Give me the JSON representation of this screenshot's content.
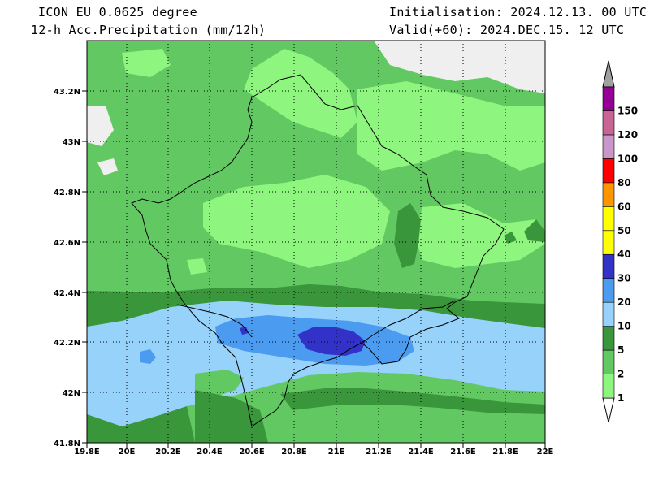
{
  "header": {
    "model": "ICON EU 0.0625 degree",
    "field": "12-h Acc.Precipitation (mm/12h)",
    "init": "Initialisation: 2024.12.13. 00 UTC",
    "valid": "Valid(+60): 2024.DEC.15. 12 UTC"
  },
  "axes": {
    "x_ticks": [
      "19.8E",
      "20E",
      "20.2E",
      "20.4E",
      "20.6E",
      "20.8E",
      "21E",
      "21.2E",
      "21.4E",
      "21.6E",
      "21.8E",
      "22E"
    ],
    "y_ticks": [
      "43.2N",
      "43N",
      "42.8N",
      "42.6N",
      "42.4N",
      "42.2N",
      "42N",
      "41.8N"
    ]
  },
  "legend": {
    "levels": [
      {
        "label": "1",
        "color": "#b5f5a8"
      },
      {
        "label": "2",
        "color": "#8ef57e"
      },
      {
        "label": "5",
        "color": "#62c862"
      },
      {
        "label": "10",
        "color": "#3a963a"
      },
      {
        "label": "20",
        "color": "#96d2fa"
      },
      {
        "label": "30",
        "color": "#4b9bf0"
      },
      {
        "label": "40",
        "color": "#3232c8"
      },
      {
        "label": "50",
        "color": "#ffff00"
      },
      {
        "label": "60",
        "color": "#ffff00"
      },
      {
        "label": "80",
        "color": "#ff9600"
      },
      {
        "label": "100",
        "color": "#ff0000"
      },
      {
        "label": "120",
        "color": "#c896c8"
      },
      {
        "label": "150",
        "color": "#c86496"
      }
    ],
    "top_color": "#960096",
    "arrow_top": "#a0a0a0",
    "arrow_bottom": "#ffffff"
  },
  "colors": {
    "light_green": "#62c862",
    "mid_green": "#8ef57e",
    "dark_green": "#3a963a",
    "light_blue": "#96d2fa",
    "mid_blue": "#4b9bf0",
    "deep_blue": "#3232c8",
    "none": "#f0f0f0"
  }
}
